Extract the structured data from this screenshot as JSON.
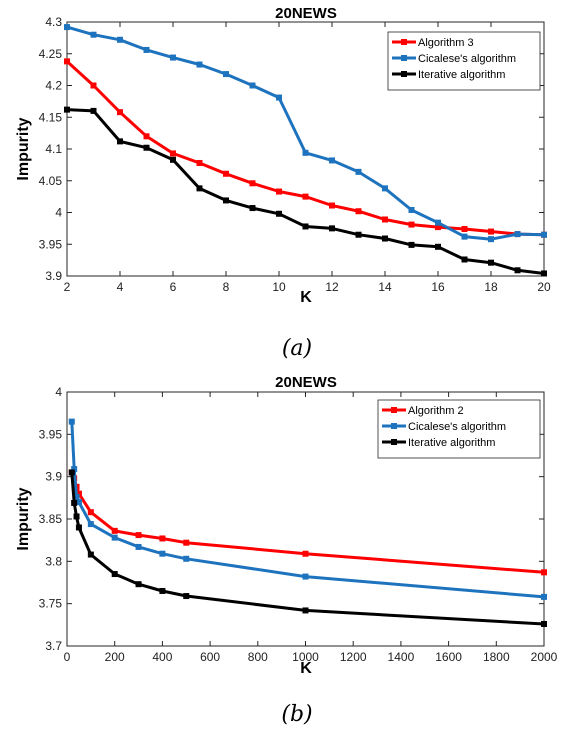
{
  "chart_data": [
    {
      "type": "line",
      "title": "20NEWS",
      "xlabel": "K",
      "ylabel": "Impurity",
      "caption": "(a)",
      "xlim": [
        2,
        20
      ],
      "ylim": [
        3.9,
        4.3
      ],
      "xticks": [
        "2",
        "4",
        "6",
        "8",
        "10",
        "12",
        "14",
        "16",
        "18",
        "20"
      ],
      "yticks": [
        "3.9",
        "3.95",
        "4",
        "4.05",
        "4.1",
        "4.15",
        "4.2",
        "4.25",
        "4.3"
      ],
      "grid": false,
      "legend_position": "top-right",
      "x": [
        2,
        3,
        4,
        5,
        6,
        7,
        8,
        9,
        10,
        11,
        12,
        13,
        14,
        15,
        16,
        17,
        18,
        19,
        20
      ],
      "series": [
        {
          "name": "Algorithm 3",
          "color": "#ff0000",
          "values": [
            4.238,
            4.2,
            4.158,
            4.12,
            4.093,
            4.078,
            4.061,
            4.046,
            4.033,
            4.025,
            4.011,
            4.002,
            3.989,
            3.981,
            3.977,
            3.974,
            3.97,
            3.966,
            3.965
          ]
        },
        {
          "name": "Cicalese's algorithm",
          "color": "#1e73be",
          "values": [
            4.292,
            4.28,
            4.272,
            4.256,
            4.244,
            4.233,
            4.218,
            4.2,
            4.181,
            4.094,
            4.082,
            4.064,
            4.038,
            4.004,
            3.984,
            3.962,
            3.958,
            3.966,
            3.965
          ]
        },
        {
          "name": "Iterative algorithm",
          "color": "#000000",
          "values": [
            4.162,
            4.16,
            4.112,
            4.102,
            4.083,
            4.038,
            4.019,
            4.007,
            3.998,
            3.978,
            3.975,
            3.965,
            3.959,
            3.949,
            3.946,
            3.926,
            3.921,
            3.909,
            3.904
          ]
        }
      ]
    },
    {
      "type": "line",
      "title": "20NEWS",
      "xlabel": "K",
      "ylabel": "Impurity",
      "caption": "(b)",
      "xlim": [
        0,
        2000
      ],
      "ylim": [
        3.7,
        4.0
      ],
      "xticks": [
        "0",
        "200",
        "400",
        "600",
        "800",
        "1000",
        "1200",
        "1400",
        "1600",
        "1800",
        "2000"
      ],
      "yticks": [
        "3.7",
        "3.75",
        "3.8",
        "3.85",
        "3.9",
        "3.95",
        "4"
      ],
      "grid": false,
      "legend_position": "top-right",
      "series": [
        {
          "name": "Algorithm  2",
          "color": "#ff0000",
          "x": [
            20,
            30,
            40,
            50,
            100,
            200,
            300,
            400,
            500,
            1000,
            2000
          ],
          "values": [
            3.905,
            3.898,
            3.888,
            3.88,
            3.858,
            3.836,
            3.831,
            3.827,
            3.822,
            3.809,
            3.787
          ]
        },
        {
          "name": "Cicalese's algorithm",
          "color": "#1e73be",
          "x": [
            20,
            30,
            40,
            50,
            100,
            200,
            300,
            400,
            500,
            1000,
            2000
          ],
          "values": [
            3.965,
            3.909,
            3.876,
            3.87,
            3.844,
            3.828,
            3.817,
            3.809,
            3.803,
            3.782,
            3.758
          ]
        },
        {
          "name": "Iterative algorithm",
          "color": "#000000",
          "x": [
            20,
            30,
            40,
            50,
            100,
            200,
            300,
            400,
            500,
            1000,
            2000
          ],
          "values": [
            3.905,
            3.869,
            3.853,
            3.84,
            3.808,
            3.785,
            3.773,
            3.765,
            3.759,
            3.742,
            3.726
          ]
        }
      ]
    }
  ]
}
